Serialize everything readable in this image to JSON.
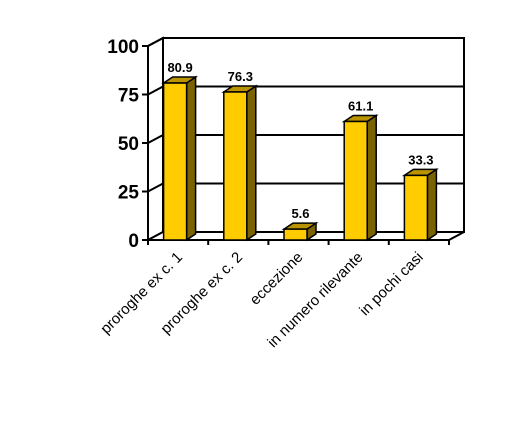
{
  "chart_data": {
    "type": "bar",
    "categories": [
      "proroghe ex c. 1",
      "proroghe ex c. 2",
      "eccezione",
      "in numero rilevante",
      "in pochi casi"
    ],
    "values": [
      80.9,
      76.3,
      5.6,
      61.1,
      33.3
    ],
    "data_labels": [
      "80.9",
      "76.3",
      "5.6",
      "61.1",
      "33.3"
    ],
    "y_ticks": [
      0,
      25,
      50,
      75,
      100
    ],
    "ylim": [
      0,
      100
    ],
    "grid": true,
    "three_d": true,
    "colors": {
      "bar_front": "#FFCC00",
      "bar_side": "#7A6200",
      "bar_top": "#B99400",
      "axis": "#000000",
      "background": "#FFFFFF"
    }
  }
}
